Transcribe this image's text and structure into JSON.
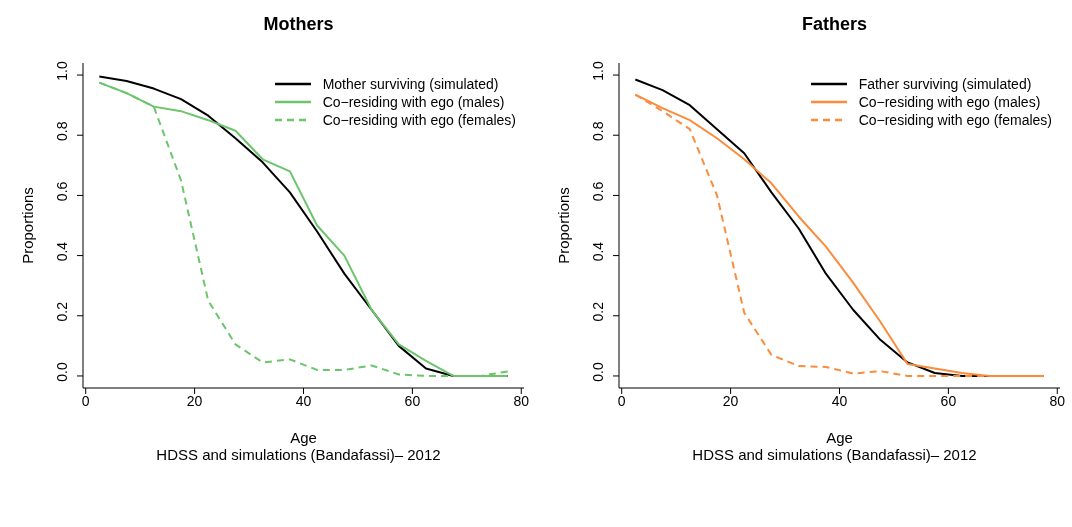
{
  "chart_data": [
    {
      "type": "line",
      "title": "Mothers",
      "xlabel": "Age",
      "ylabel": "Proportions",
      "annotations": [
        "HDSS and simulations (Bandafassi)– 2012"
      ],
      "x": [
        2.5,
        7.5,
        12.5,
        17.5,
        22.5,
        27.5,
        32.5,
        37.5,
        42.5,
        47.5,
        52.5,
        57.5,
        62.5,
        67.5,
        72.5,
        77.5
      ],
      "xlim": [
        -0.5,
        80.5
      ],
      "xticks": [
        0,
        20,
        40,
        60,
        80
      ],
      "ylim": [
        -0.04,
        1.04
      ],
      "yticks": [
        {
          "value": 0,
          "label": "0.0"
        },
        {
          "value": 0.2,
          "label": "0.2"
        },
        {
          "value": 0.4,
          "label": "0.4"
        },
        {
          "value": 0.6,
          "label": "0.6"
        },
        {
          "value": 0.8,
          "label": "0.8"
        },
        {
          "value": 1,
          "label": "1.0"
        }
      ],
      "legend": "top right",
      "grid": false,
      "marker": "none",
      "series": [
        {
          "name": "Mother surviving (simulated)",
          "color": "#000000",
          "line_style": "solid",
          "values": [
            0.995,
            0.98,
            0.955,
            0.92,
            0.865,
            0.79,
            0.71,
            0.61,
            0.48,
            0.34,
            0.22,
            0.1,
            0.025,
            0,
            0,
            0
          ]
        },
        {
          "name": "Co−residing with ego (males)",
          "color": "#6cc56c",
          "line_style": "solid",
          "values": [
            0.975,
            0.94,
            0.895,
            0.88,
            0.85,
            0.815,
            0.72,
            0.68,
            0.5,
            0.4,
            0.22,
            0.105,
            0.05,
            0,
            0,
            0
          ]
        },
        {
          "name": "Co−residing with ego (females)",
          "color": "#6cc56c",
          "line_style": "dashed",
          "values": [
            0.975,
            0.94,
            0.895,
            0.65,
            0.25,
            0.105,
            0.045,
            0.055,
            0.02,
            0.02,
            0.035,
            0.005,
            0,
            0,
            0,
            0.015
          ]
        }
      ]
    },
    {
      "type": "line",
      "title": "Fathers",
      "xlabel": "Age",
      "ylabel": "Proportions",
      "annotations": [
        "HDSS and simulations (Bandafassi)– 2012"
      ],
      "x": [
        2.5,
        7.5,
        12.5,
        17.5,
        22.5,
        27.5,
        32.5,
        37.5,
        42.5,
        47.5,
        52.5,
        57.5,
        62.5,
        67.5,
        72.5,
        77.5
      ],
      "xlim": [
        -0.5,
        80.5
      ],
      "xticks": [
        0,
        20,
        40,
        60,
        80
      ],
      "ylim": [
        -0.04,
        1.04
      ],
      "yticks": [
        {
          "value": 0,
          "label": "0.0"
        },
        {
          "value": 0.2,
          "label": "0.2"
        },
        {
          "value": 0.4,
          "label": "0.4"
        },
        {
          "value": 0.6,
          "label": "0.6"
        },
        {
          "value": 0.8,
          "label": "0.8"
        },
        {
          "value": 1,
          "label": "1.0"
        }
      ],
      "legend": "top right",
      "grid": false,
      "marker": "none",
      "series": [
        {
          "name": "Father surviving (simulated)",
          "color": "#000000",
          "line_style": "solid",
          "values": [
            0.985,
            0.95,
            0.9,
            0.82,
            0.74,
            0.61,
            0.49,
            0.34,
            0.22,
            0.12,
            0.045,
            0.01,
            0,
            0,
            0,
            0
          ]
        },
        {
          "name": "Co−residing with ego (males)",
          "color": "#fb8c3c",
          "line_style": "solid",
          "values": [
            0.935,
            0.89,
            0.85,
            0.79,
            0.72,
            0.64,
            0.53,
            0.43,
            0.31,
            0.18,
            0.04,
            0.025,
            0.01,
            0,
            0,
            0
          ]
        },
        {
          "name": "Co−residing with ego (females)",
          "color": "#fb8c3c",
          "line_style": "dashed",
          "values": [
            0.935,
            0.88,
            0.82,
            0.6,
            0.21,
            0.07,
            0.033,
            0.03,
            0.008,
            0.016,
            0,
            0,
            0,
            0,
            0,
            0
          ]
        }
      ]
    }
  ]
}
